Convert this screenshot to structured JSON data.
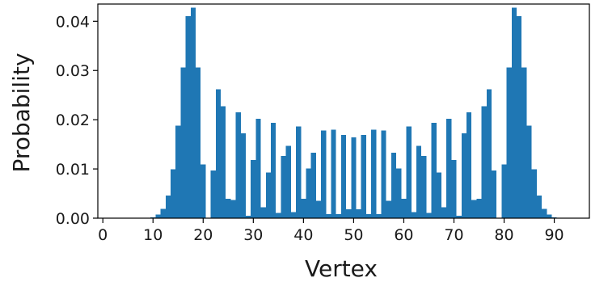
{
  "chart_data": {
    "type": "bar",
    "title": "",
    "xlabel": "Vertex",
    "ylabel": "Probability",
    "xlim": [
      -1,
      97
    ],
    "ylim": [
      0,
      0.0435
    ],
    "xticks": [
      0,
      10,
      20,
      30,
      40,
      50,
      60,
      70,
      80,
      90
    ],
    "xtick_labels": [
      "0",
      "10",
      "20",
      "30",
      "40",
      "50",
      "60",
      "70",
      "80",
      "90"
    ],
    "yticks": [
      0.0,
      0.01,
      0.02,
      0.03,
      0.04
    ],
    "ytick_labels": [
      "0.00",
      "0.01",
      "0.02",
      "0.03",
      "0.04"
    ],
    "grid": false,
    "bar_color": "#1f77b4",
    "x": [
      0,
      1,
      2,
      3,
      4,
      5,
      6,
      7,
      8,
      9,
      10,
      11,
      12,
      13,
      14,
      15,
      16,
      17,
      18,
      19,
      20,
      21,
      22,
      23,
      24,
      25,
      26,
      27,
      28,
      29,
      30,
      31,
      32,
      33,
      34,
      35,
      36,
      37,
      38,
      39,
      40,
      41,
      42,
      43,
      44,
      45,
      46,
      47,
      48,
      49,
      50,
      51,
      52,
      53,
      54,
      55,
      56,
      57,
      58,
      59,
      60,
      61,
      62,
      63,
      64,
      65,
      66,
      67,
      68,
      69,
      70,
      71,
      72,
      73,
      74,
      75,
      76,
      77,
      78,
      79,
      80,
      81,
      82,
      83,
      84,
      85,
      86,
      87,
      88,
      89,
      90,
      91,
      92,
      93,
      94,
      95
    ],
    "values": [
      0,
      0,
      0,
      0,
      0,
      0,
      0,
      0,
      0,
      0,
      0.0002,
      0.0007,
      0.0019,
      0.0046,
      0.0099,
      0.0188,
      0.0306,
      0.041,
      0.0428,
      0.0306,
      0.0109,
      0,
      0.0097,
      0.0262,
      0.0227,
      0.0039,
      0.0037,
      0.0215,
      0.0172,
      0.0005,
      0.0118,
      0.0202,
      0.0022,
      0.0093,
      0.0194,
      0.0011,
      0.0126,
      0.0147,
      0.0012,
      0.0186,
      0.0039,
      0.0101,
      0.0133,
      0.0035,
      0.0178,
      0.0008,
      0.018,
      0.0008,
      0.0169,
      0.0018,
      0.0164,
      0.0018,
      0.0169,
      0.0008,
      0.018,
      0.0008,
      0.0178,
      0.0035,
      0.0133,
      0.0101,
      0.0039,
      0.0186,
      0.0012,
      0.0147,
      0.0126,
      0.0011,
      0.0194,
      0.0093,
      0.0022,
      0.0202,
      0.0118,
      0.0005,
      0.0172,
      0.0215,
      0.0037,
      0.0039,
      0.0227,
      0.0262,
      0.0097,
      0,
      0.0109,
      0.0306,
      0.0428,
      0.041,
      0.0306,
      0.0188,
      0.0099,
      0.0046,
      0.0019,
      0.0007,
      0.0002,
      0,
      0,
      0,
      0,
      0
    ]
  }
}
